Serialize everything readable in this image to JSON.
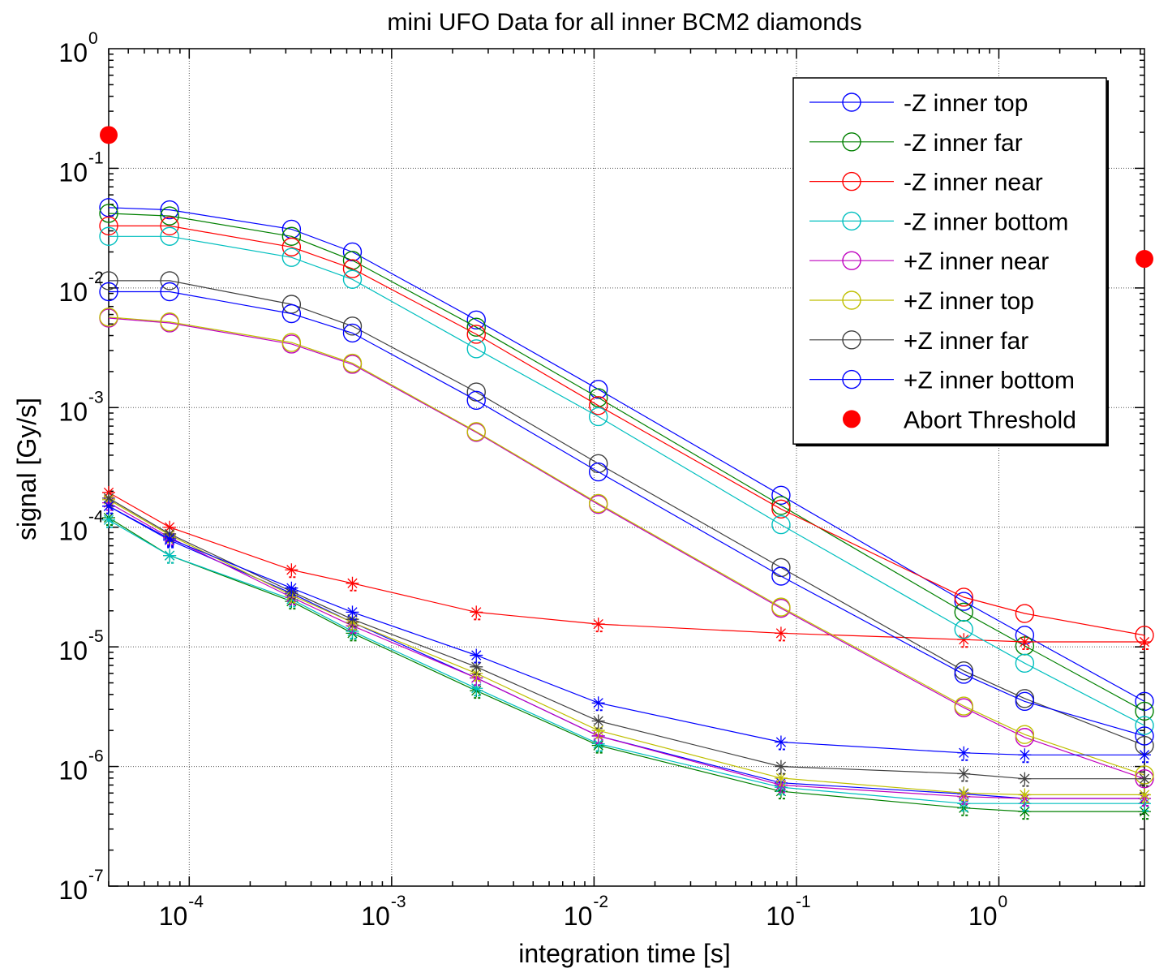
{
  "chart_data": {
    "type": "line",
    "title": "mini UFO Data for all inner BCM2 diamonds",
    "xlabel": "integration time [s]",
    "ylabel": "signal [Gy/s]",
    "xscale": "log",
    "yscale": "log",
    "xlim": [
      4e-05,
      5.24
    ],
    "ylim": [
      1e-07,
      1
    ],
    "grid": true,
    "legend_position": "top-right",
    "x_ticks": [
      {
        "value": 0.0001,
        "base": "10",
        "exp": "-4"
      },
      {
        "value": 0.001,
        "base": "10",
        "exp": "-3"
      },
      {
        "value": 0.01,
        "base": "10",
        "exp": "-2"
      },
      {
        "value": 0.1,
        "base": "10",
        "exp": "-1"
      },
      {
        "value": 1,
        "base": "10",
        "exp": "0"
      }
    ],
    "y_ticks": [
      {
        "value": 1e-07,
        "base": "10",
        "exp": "-7"
      },
      {
        "value": 1e-06,
        "base": "10",
        "exp": "-6"
      },
      {
        "value": 1e-05,
        "base": "10",
        "exp": "-5"
      },
      {
        "value": 0.0001,
        "base": "10",
        "exp": "-4"
      },
      {
        "value": 0.001,
        "base": "10",
        "exp": "-3"
      },
      {
        "value": 0.01,
        "base": "10",
        "exp": "-2"
      },
      {
        "value": 0.1,
        "base": "10",
        "exp": "-1"
      },
      {
        "value": 1,
        "base": "10",
        "exp": "0"
      }
    ],
    "x": [
      4e-05,
      8e-05,
      0.00032,
      0.00064,
      0.00262,
      0.0105,
      0.0839,
      0.671,
      1.342,
      5.24
    ],
    "series": [
      {
        "name": "-Z inner top",
        "color": "#0000ff",
        "values": [
          0.047,
          0.045,
          0.031,
          0.02,
          0.0054,
          0.00142,
          0.000185,
          2.4e-05,
          1.25e-05,
          3.5e-06
        ],
        "noise": [
          0.00015,
          7.8e-05,
          2.8e-05,
          1.6e-05,
          5.5e-06,
          1.8e-06,
          7.3e-07,
          5.9e-07,
          5.4e-07,
          5.4e-07
        ]
      },
      {
        "name": "-Z inner far",
        "color": "#008000",
        "values": [
          0.042,
          0.04,
          0.027,
          0.017,
          0.0047,
          0.00121,
          0.000152,
          1.95e-05,
          1.02e-05,
          2.9e-06
        ],
        "noise": [
          0.00012,
          5.8e-05,
          2.4e-05,
          1.3e-05,
          4.3e-06,
          1.5e-06,
          6.2e-07,
          4.5e-07,
          4.2e-07,
          4.2e-07
        ]
      },
      {
        "name": "-Z inner near",
        "color": "#ff0000",
        "values": [
          0.033,
          0.033,
          0.022,
          0.0145,
          0.0041,
          0.00104,
          0.000142,
          2.6e-05,
          1.9e-05,
          1.25e-05
        ],
        "noise": [
          0.000195,
          0.0001,
          4.4e-05,
          3.4e-05,
          1.95e-05,
          1.55e-05,
          1.3e-05,
          1.15e-05,
          1.1e-05,
          1.1e-05
        ]
      },
      {
        "name": "-Z inner bottom",
        "color": "#00bfbf",
        "values": [
          0.027,
          0.027,
          0.018,
          0.0118,
          0.0031,
          0.00084,
          0.000105,
          1.4e-05,
          7.3e-06,
          2.2e-06
        ],
        "noise": [
          0.000115,
          5.8e-05,
          2.5e-05,
          1.35e-05,
          4.5e-06,
          1.55e-06,
          6.7e-07,
          4.9e-07,
          4.9e-07,
          4.9e-07
        ]
      },
      {
        "name": "+Z inner near",
        "color": "#bf00bf",
        "values": [
          0.0056,
          0.0051,
          0.0034,
          0.0023,
          0.00062,
          0.000155,
          2.1e-05,
          3.1e-06,
          1.75e-06,
          7.9e-07
        ],
        "noise": [
          0.00016,
          8.2e-05,
          2.6e-05,
          1.5e-05,
          5.5e-06,
          1.8e-06,
          7e-07,
          5.6e-07,
          5.4e-07,
          5.4e-07
        ]
      },
      {
        "name": "+Z inner top",
        "color": "#bfbf00",
        "values": [
          0.0057,
          0.0052,
          0.0035,
          0.00235,
          0.00063,
          0.000158,
          2.15e-05,
          3.2e-06,
          1.85e-06,
          8.5e-07
        ],
        "noise": [
          0.00017,
          8.6e-05,
          2.7e-05,
          1.6e-05,
          6e-06,
          2e-06,
          8e-07,
          6e-07,
          5.8e-07,
          5.8e-07
        ]
      },
      {
        "name": "+Z inner far",
        "color": "#404040",
        "values": [
          0.0115,
          0.0115,
          0.0073,
          0.0048,
          0.00135,
          0.00034,
          4.6e-05,
          6.3e-06,
          3.7e-06,
          1.5e-06
        ],
        "noise": [
          0.000175,
          8.8e-05,
          2.9e-05,
          1.7e-05,
          6.8e-06,
          2.4e-06,
          1e-06,
          8.7e-07,
          7.9e-07,
          7.9e-07
        ]
      },
      {
        "name": "+Z inner bottom",
        "color": "#0000ff",
        "values": [
          0.0093,
          0.0093,
          0.0061,
          0.0042,
          0.00115,
          0.00029,
          3.9e-05,
          5.9e-06,
          3.5e-06,
          1.8e-06
        ],
        "noise": [
          0.00015,
          8e-05,
          3.1e-05,
          1.95e-05,
          8.5e-06,
          3.4e-06,
          1.6e-06,
          1.3e-06,
          1.25e-06,
          1.25e-06
        ]
      }
    ],
    "abort_threshold": {
      "name": "Abort Threshold",
      "color": "#ff0000",
      "points": [
        {
          "x": 4e-05,
          "y": 0.19
        },
        {
          "x": 5.24,
          "y": 0.0175
        }
      ]
    }
  }
}
